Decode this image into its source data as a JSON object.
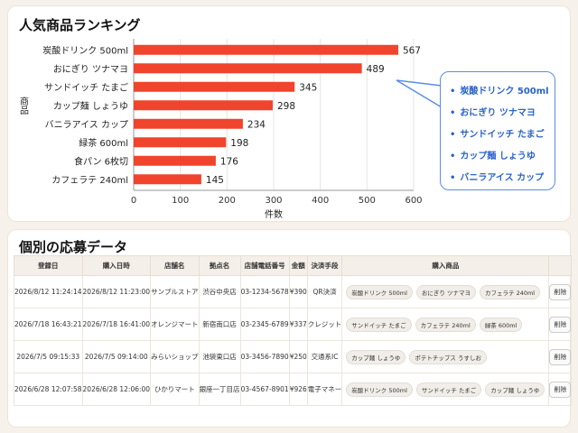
{
  "chart_section": {
    "title": "人気商品ランキング"
  },
  "chart_data": {
    "type": "bar",
    "orientation": "horizontal",
    "title": "人気商品ランキング",
    "categories": [
      "炭酸ドリンク 500ml",
      "おにぎり ツナマヨ",
      "サンドイッチ たまご",
      "カップ麺 しょうゆ",
      "バニラアイス カップ",
      "緑茶 600ml",
      "食パン 6枚切",
      "カフェラテ 240ml"
    ],
    "values": [
      567,
      489,
      345,
      298,
      234,
      198,
      176,
      145
    ],
    "xlabel": "件数",
    "ylabel": "商品",
    "xlim": [
      0,
      600
    ],
    "xticks": [
      0,
      100,
      200,
      300,
      400,
      500,
      600
    ],
    "bar_color": "#f0442c",
    "grid": true
  },
  "callout": {
    "items": [
      "炭酸ドリンク 500ml",
      "おにぎり ツナマヨ",
      "サンドイッチ たまご",
      "カップ麺 しょうゆ",
      "バニラアイス カップ"
    ],
    "color": "#2a63c9"
  },
  "table_section": {
    "title": "個別の応募データ",
    "columns": [
      "登録日",
      "購入日時",
      "店舗名",
      "拠点名",
      "店舗電話番号",
      "金額",
      "決済手段",
      "購入商品",
      ""
    ],
    "rows": [
      {
        "registered": "2026/8/12 11:24:14",
        "purchased": "2026/8/12 11:23:00",
        "store": "サンプルストア",
        "branch": "渋谷中央店",
        "phone": "03-1234-5678",
        "amount": "¥390",
        "payment": "QR決済",
        "products": [
          "炭酸ドリンク 500ml",
          "おにぎり ツナマヨ",
          "カフェラテ 240ml"
        ],
        "action": "削除"
      },
      {
        "registered": "2026/7/18 16:43:21",
        "purchased": "2026/7/18 16:41:00",
        "store": "オレンジマート",
        "branch": "新宿南口店",
        "phone": "03-2345-6789",
        "amount": "¥337",
        "payment": "クレジット",
        "products": [
          "サンドイッチ たまご",
          "カフェラテ 240ml",
          "緑茶 600ml"
        ],
        "action": "削除"
      },
      {
        "registered": "2026/7/5 09:15:33",
        "purchased": "2026/7/5 09:14:00",
        "store": "みらいショップ",
        "branch": "池袋東口店",
        "phone": "03-3456-7890",
        "amount": "¥250",
        "payment": "交通系IC",
        "products": [
          "カップ麺 しょうゆ",
          "ポテトチップス うすしお"
        ],
        "action": "削除"
      },
      {
        "registered": "2026/6/28 12:07:58",
        "purchased": "2026/6/28 12:06:00",
        "store": "ひかりマート",
        "branch": "銀座一丁目店",
        "phone": "03-4567-8901",
        "amount": "¥926",
        "payment": "電子マネー",
        "products": [
          "炭酸ドリンク 500ml",
          "サンドイッチ たまご",
          "カップ麺 しょうゆ"
        ],
        "action": "削除"
      }
    ]
  }
}
